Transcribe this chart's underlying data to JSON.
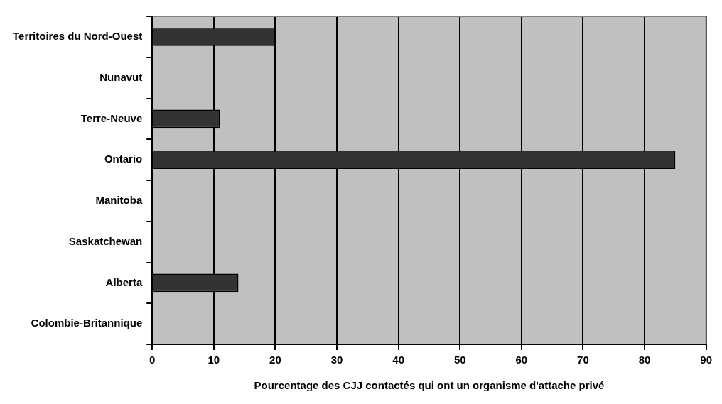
{
  "chart_data": {
    "type": "bar",
    "orientation": "horizontal",
    "xlabel": "Pourcentage des CJJ contactés qui ont un organisme d'attache privé",
    "categories": [
      "Territoires du Nord-Ouest",
      "Nunavut",
      "Terre-Neuve",
      "Ontario",
      "Manitoba",
      "Saskatchewan",
      "Alberta",
      "Colombie-Britannique"
    ],
    "values": [
      20,
      0,
      11,
      85,
      0,
      0,
      14,
      0
    ],
    "color": "#333333",
    "xlim": [
      0,
      90
    ],
    "xticks": [
      0,
      10,
      20,
      30,
      40,
      50,
      60,
      70,
      80,
      90
    ],
    "grid": "x",
    "legend": false
  }
}
